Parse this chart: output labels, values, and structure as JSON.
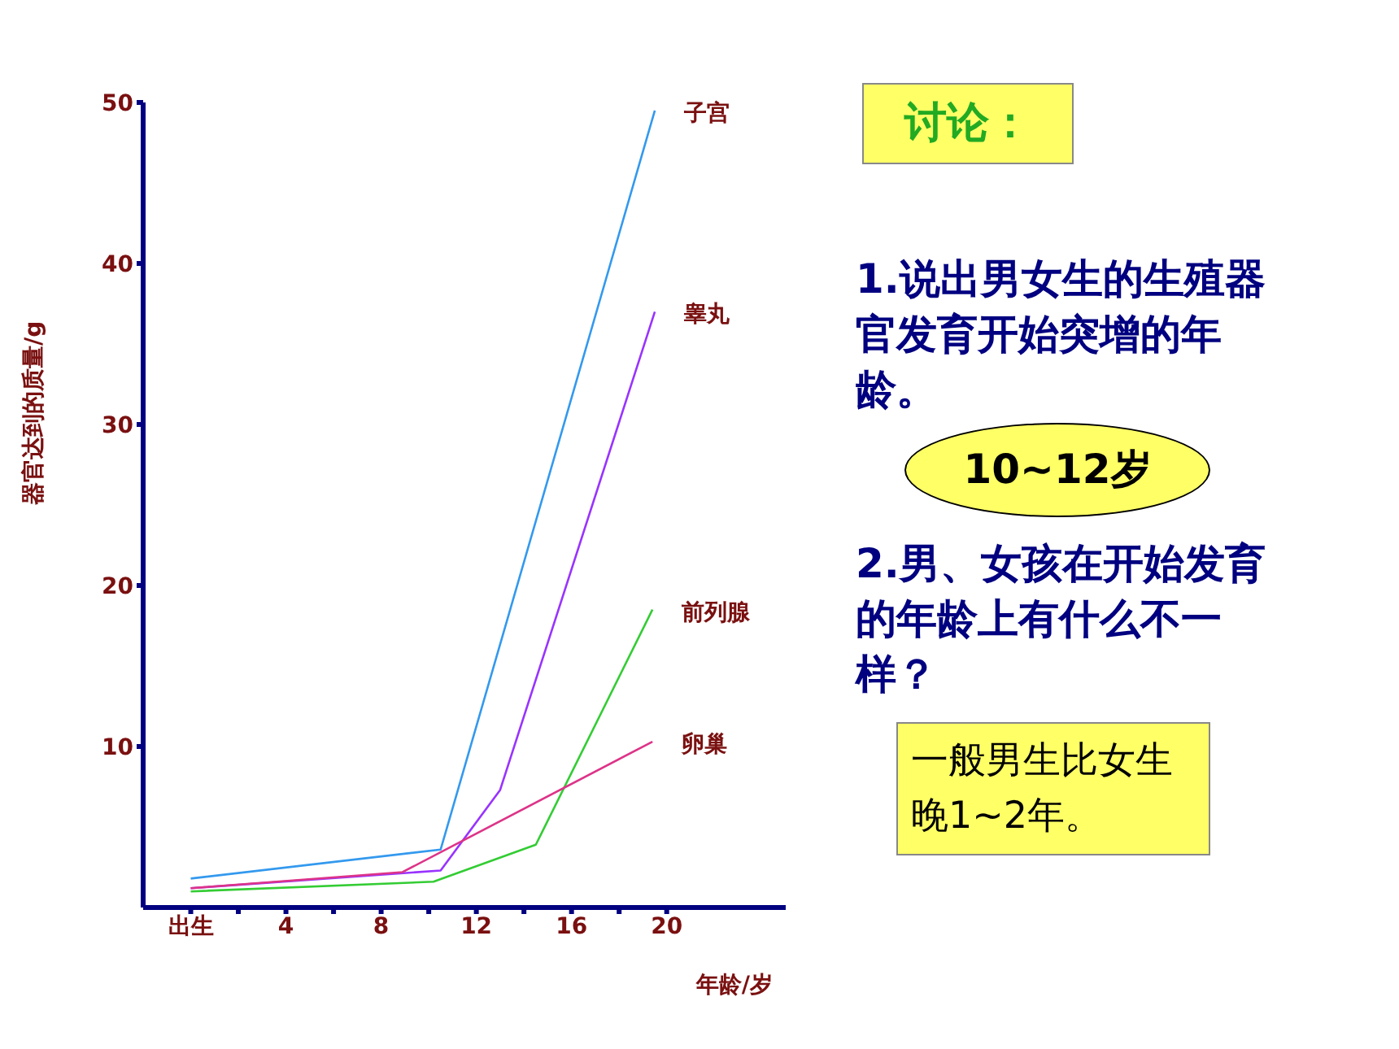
{
  "chart_data": {
    "type": "line",
    "xlabel": "年龄/岁",
    "ylabel": "器官达到的质量/g",
    "xlim": [
      -2,
      25
    ],
    "xticks": [
      {
        "value": 0,
        "label": "出生"
      },
      {
        "value": 2,
        "label": null
      },
      4,
      {
        "value": 6,
        "label": null
      },
      8,
      {
        "value": 10,
        "label": null
      },
      12,
      {
        "value": 14,
        "label": null
      },
      16,
      {
        "value": 18,
        "label": null
      },
      20
    ],
    "ylim": [
      0,
      50
    ],
    "yticks": [
      10,
      20,
      30,
      40,
      50
    ],
    "marker": "none",
    "line_style": "solid",
    "series": [
      {
        "name": "子宫",
        "color": "#3399ee",
        "x": [
          0,
          10.5,
          19.5
        ],
        "values": [
          1.8,
          3.6,
          49.5
        ]
      },
      {
        "name": "睾丸",
        "color": "#9933ff",
        "x": [
          0,
          10.5,
          13,
          19.5
        ],
        "values": [
          1.2,
          2.3,
          7.3,
          37
        ]
      },
      {
        "name": "前列腺",
        "color": "#33cc33",
        "x": [
          0,
          10.2,
          14.5,
          19.4
        ],
        "values": [
          1.0,
          1.6,
          3.9,
          18.5
        ]
      },
      {
        "name": "卵巢",
        "color": "#dd3388",
        "x": [
          0,
          8.9,
          19.4
        ],
        "values": [
          1.2,
          2.2,
          10.3
        ]
      }
    ],
    "annotations": [
      "讨论：",
      "1.说出男女生的生殖器官发育开始突增的年龄。",
      "10~12岁",
      "2.男、女孩在开始发育的年龄上有什么不一样？",
      "一般男生比女生晚1~2年。"
    ]
  }
}
